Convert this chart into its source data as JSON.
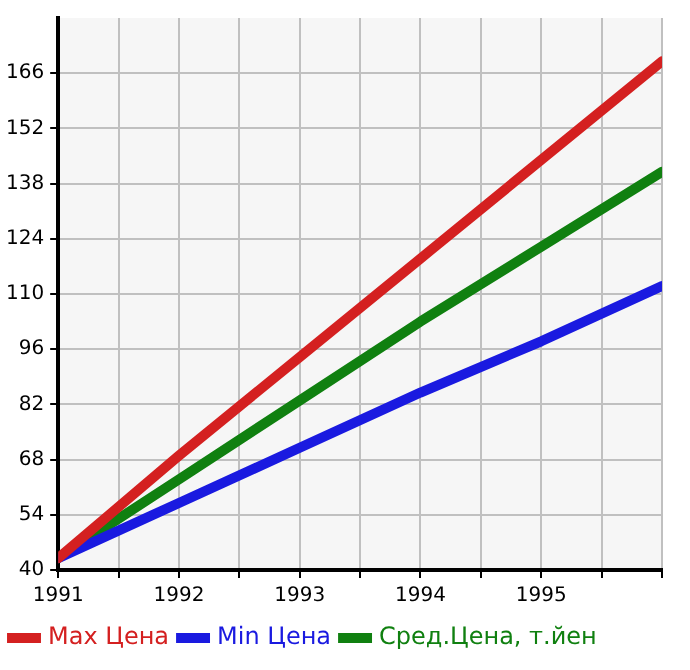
{
  "chart_data": {
    "type": "line",
    "x": [
      1991,
      1992,
      1993,
      1994,
      1995,
      1996
    ],
    "series": [
      {
        "name": "Max Цена",
        "color": "#d42020",
        "values": [
          43,
          69,
          94,
          119,
          144,
          169
        ]
      },
      {
        "name": "Min Цена",
        "color": "#1a1ae0",
        "values": [
          43,
          57,
          71,
          85,
          98,
          112
        ]
      },
      {
        "name": "Сред.Цена, т.йен",
        "color": "#108010",
        "values": [
          43,
          63,
          83,
          103,
          122,
          141
        ]
      }
    ],
    "xlim": [
      1991,
      1996
    ],
    "ylim": [
      40,
      180
    ],
    "xticks": [
      1991,
      {
        "value": 1991.5,
        "label": null
      },
      1992,
      {
        "value": 1992.5,
        "label": null
      },
      1993,
      {
        "value": 1993.5,
        "label": null
      },
      1994,
      {
        "value": 1994.5,
        "label": null
      },
      1995,
      {
        "value": 1995.5,
        "label": null
      },
      {
        "value": 1996,
        "label": null
      }
    ],
    "yticks": [
      40,
      54,
      68,
      82,
      96,
      110,
      124,
      138,
      152,
      166
    ],
    "grid": true,
    "legend": "bottom",
    "marker": "none",
    "line_style": "solid"
  }
}
